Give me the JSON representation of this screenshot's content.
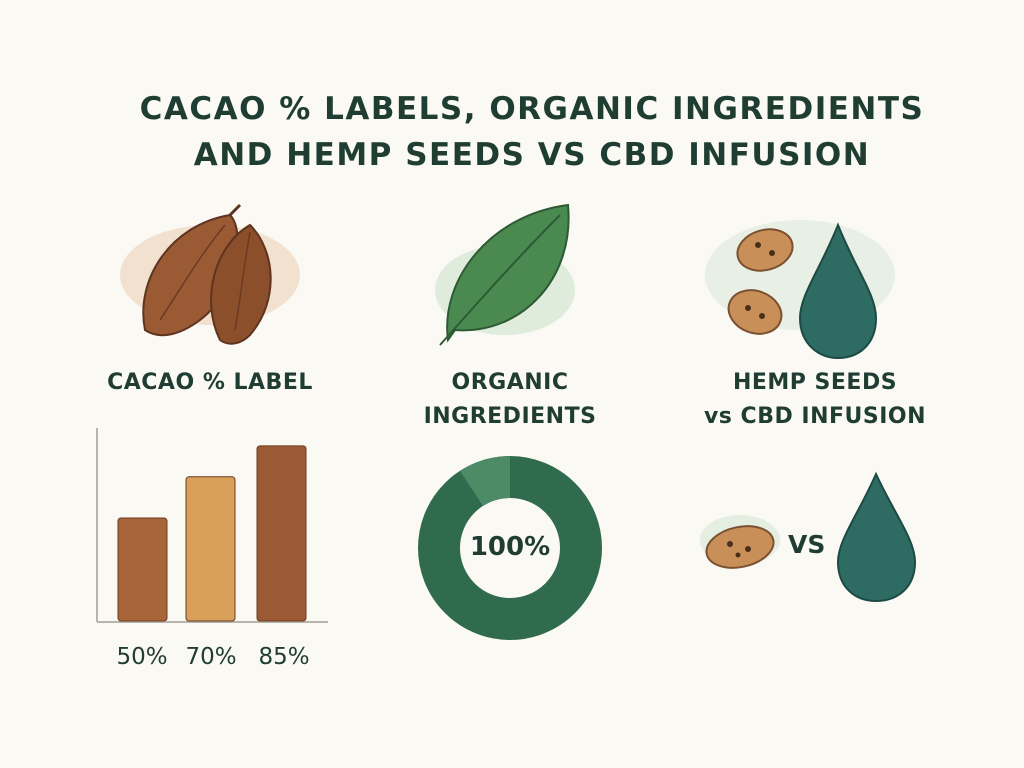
{
  "title": {
    "line1": "CACAO % LABELS, ORGANIC INGREDIENTS",
    "line2": "AND HEMP SEEDS VS CBD INFUSION"
  },
  "sections": {
    "cacao": {
      "label": "CACAO % LABEL",
      "icon": "cacao-pod-icon"
    },
    "organic": {
      "label_line1": "ORGANIC",
      "label_line2": "INGREDIENTS",
      "icon": "leaf-icon",
      "donut_value": "100%"
    },
    "hemp": {
      "label_line1": "HEMP SEEDS",
      "label_line2": "vs CBD INFUSION",
      "icon": "hemp-seed-and-oil-drop-icon",
      "vs_text": "VS"
    }
  },
  "colors": {
    "title": "#1f3d33",
    "bar_dark": "#a8653a",
    "bar_light": "#d9a05a",
    "donut": "#2f6b4c",
    "donut_light": "#4d8a66",
    "drop": "#2e6b63",
    "seed": "#c89058"
  },
  "chart_data": {
    "type": "bar",
    "categories": [
      "50%",
      "70%",
      "85%"
    ],
    "values": [
      50,
      70,
      85
    ],
    "ylim": [
      0,
      100
    ],
    "grid": false
  }
}
